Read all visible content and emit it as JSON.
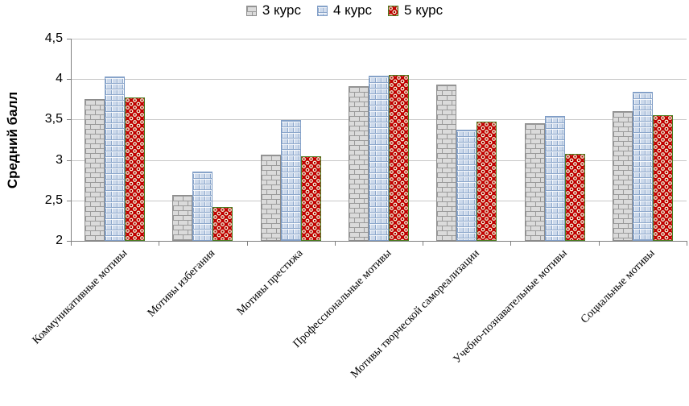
{
  "legend": {
    "items": [
      {
        "label": "3 курс",
        "pattern": "brick"
      },
      {
        "label": "4 курс",
        "pattern": "grid"
      },
      {
        "label": "5 курс",
        "pattern": "dots"
      }
    ]
  },
  "chart_data": {
    "type": "bar",
    "title": "",
    "xlabel": "",
    "ylabel": "Средний балл",
    "ylim": [
      2,
      4.5
    ],
    "ytick_labels": [
      "4,5",
      "4",
      "3,5",
      "3",
      "2,5",
      "2"
    ],
    "grid": true,
    "legend_position": "top",
    "categories": [
      "Коммуникативные мотивы",
      "Мотивы избегания",
      "Мотивы престижа",
      "Профессиональные мотивы",
      "Мотивы творческой самореализации",
      "Учебно-познавательные мотивы",
      "Социальные мотивы"
    ],
    "series": [
      {
        "name": "3 курс",
        "pattern": "brick",
        "fill": "#d9d9d9",
        "line": "#8c8c8c",
        "values": [
          3.75,
          2.57,
          3.07,
          3.91,
          3.93,
          3.45,
          3.6
        ]
      },
      {
        "name": "4 курс",
        "pattern": "grid",
        "fill": "#ccd9eb",
        "line": "#7f9dc6",
        "values": [
          4.03,
          2.86,
          3.49,
          4.04,
          3.37,
          3.54,
          3.84
        ]
      },
      {
        "name": "5 курс",
        "pattern": "dots",
        "fill": "#c00000",
        "line": "#4a7c1f",
        "values": [
          3.77,
          2.42,
          3.05,
          4.05,
          3.47,
          3.08,
          3.55
        ]
      }
    ]
  }
}
